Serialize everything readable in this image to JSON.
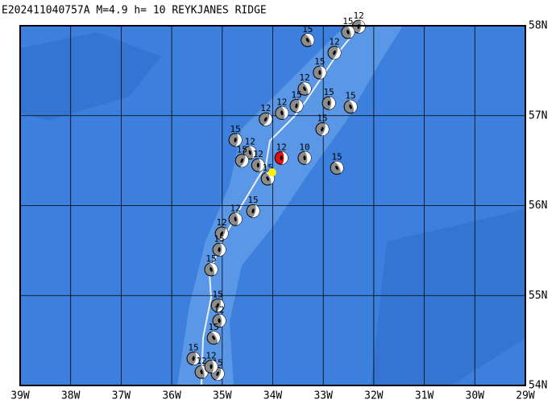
{
  "map": {
    "title": "E202411040757A M=4.9 h= 10 REYKJANES RIDGE",
    "xlim": [
      -39,
      -29
    ],
    "ylim": [
      54,
      58
    ],
    "xticks": [
      {
        "value": -39,
        "label": "39W"
      },
      {
        "value": -38,
        "label": "38W"
      },
      {
        "value": -37,
        "label": "37W"
      },
      {
        "value": -36,
        "label": "36W"
      },
      {
        "value": -35,
        "label": "35W"
      },
      {
        "value": -34,
        "label": "34W"
      },
      {
        "value": -33,
        "label": "33W"
      },
      {
        "value": -32,
        "label": "32W"
      },
      {
        "value": -31,
        "label": "31W"
      },
      {
        "value": -30,
        "label": "30W"
      },
      {
        "value": -29,
        "label": "29W"
      }
    ],
    "yticks": [
      {
        "value": 54,
        "label": "54N"
      },
      {
        "value": 55,
        "label": "55N"
      },
      {
        "value": 56,
        "label": "56N"
      },
      {
        "value": 57,
        "label": "57N"
      },
      {
        "value": 58,
        "label": "58N"
      }
    ],
    "events": [
      {
        "lon": -33.31,
        "lat": 57.84,
        "depth": 15
      },
      {
        "lon": -32.3,
        "lat": 57.99,
        "depth": 12
      },
      {
        "lon": -32.51,
        "lat": 57.93,
        "depth": 15
      },
      {
        "lon": -32.78,
        "lat": 57.7,
        "depth": 12
      },
      {
        "lon": -33.07,
        "lat": 57.48,
        "depth": 15
      },
      {
        "lon": -33.37,
        "lat": 57.3,
        "depth": 12
      },
      {
        "lon": -33.53,
        "lat": 57.11,
        "depth": 15
      },
      {
        "lon": -33.82,
        "lat": 57.03,
        "depth": 12
      },
      {
        "lon": -34.14,
        "lat": 56.96,
        "depth": 12
      },
      {
        "lon": -32.89,
        "lat": 57.14,
        "depth": 15
      },
      {
        "lon": -32.46,
        "lat": 57.1,
        "depth": 15
      },
      {
        "lon": -33.02,
        "lat": 56.85,
        "depth": 15
      },
      {
        "lon": -33.37,
        "lat": 56.53,
        "depth": 10
      },
      {
        "lon": -32.73,
        "lat": 56.42,
        "depth": 15
      },
      {
        "lon": -34.74,
        "lat": 56.73,
        "depth": 15
      },
      {
        "lon": -34.45,
        "lat": 56.59,
        "depth": 12
      },
      {
        "lon": -34.61,
        "lat": 56.5,
        "depth": 15
      },
      {
        "lon": -34.29,
        "lat": 56.45,
        "depth": 12
      },
      {
        "lon": -34.1,
        "lat": 56.3,
        "depth": 15
      },
      {
        "lon": -34.39,
        "lat": 55.94,
        "depth": 15
      },
      {
        "lon": -34.74,
        "lat": 55.85,
        "depth": 12
      },
      {
        "lon": -35.01,
        "lat": 55.69,
        "depth": 12
      },
      {
        "lon": -35.06,
        "lat": 55.51,
        "depth": 15
      },
      {
        "lon": -35.22,
        "lat": 55.29,
        "depth": 15
      },
      {
        "lon": -35.09,
        "lat": 54.89,
        "depth": 15
      },
      {
        "lon": -35.06,
        "lat": 54.72,
        "depth": 12
      },
      {
        "lon": -35.17,
        "lat": 54.53,
        "depth": 15
      },
      {
        "lon": -35.57,
        "lat": 54.3,
        "depth": 15
      },
      {
        "lon": -35.41,
        "lat": 54.15,
        "depth": 12
      },
      {
        "lon": -35.09,
        "lat": 54.13,
        "depth": 15
      },
      {
        "lon": -35.22,
        "lat": 54.21,
        "depth": 12
      }
    ],
    "main_event": {
      "lon": -33.83,
      "lat": 56.53,
      "depth": 12
    },
    "epicenter": {
      "lon": -34.01,
      "lat": 56.37
    }
  }
}
